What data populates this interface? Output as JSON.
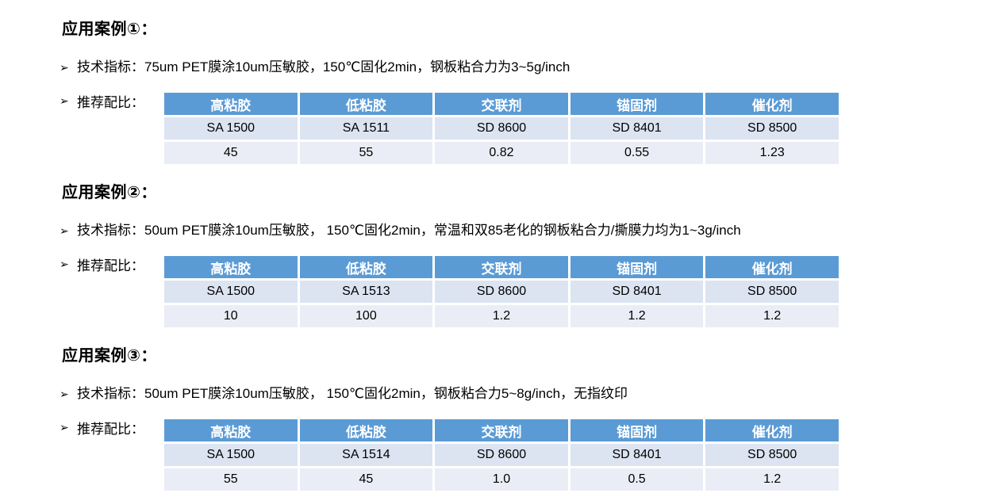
{
  "colors": {
    "table_header_bg": "#5B9BD5",
    "table_header_text": "#FFFFFF",
    "table_row1_bg": "#DCE3F1",
    "table_row2_bg": "#EAEDF5",
    "body_text": "#000000"
  },
  "bullet_glyph": "➢",
  "sections": [
    {
      "title": "应用案例①：",
      "tech_label": "技术指标：75um PET膜涂10um压敏胶，150℃固化2min，钢板粘合力为3~5g/inch",
      "ratio_label": "推荐配比：",
      "table": {
        "headers": [
          "高粘胶",
          "低粘胶",
          "交联剂",
          "锚固剂",
          "催化剂"
        ],
        "rows": [
          [
            "SA 1500",
            "SA 1511",
            "SD 8600",
            "SD 8401",
            "SD 8500"
          ],
          [
            "45",
            "55",
            "0.82",
            "0.55",
            "1.23"
          ]
        ]
      }
    },
    {
      "title": "应用案例②：",
      "tech_label": "技术指标：50um PET膜涂10um压敏胶， 150℃固化2min，常温和双85老化的钢板粘合力/撕膜力均为1~3g/inch",
      "ratio_label": "推荐配比：",
      "table": {
        "headers": [
          "高粘胶",
          "低粘胶",
          "交联剂",
          "锚固剂",
          "催化剂"
        ],
        "rows": [
          [
            "SA 1500",
            "SA 1513",
            "SD 8600",
            "SD 8401",
            "SD 8500"
          ],
          [
            "10",
            "100",
            "1.2",
            "1.2",
            "1.2"
          ]
        ]
      }
    },
    {
      "title": "应用案例③：",
      "tech_label": "技术指标：50um PET膜涂10um压敏胶， 150℃固化2min，钢板粘合力5~8g/inch，无指纹印",
      "ratio_label": "推荐配比：",
      "table": {
        "headers": [
          "高粘胶",
          "低粘胶",
          "交联剂",
          "锚固剂",
          "催化剂"
        ],
        "rows": [
          [
            "SA 1500",
            "SA 1514",
            "SD 8600",
            "SD 8401",
            "SD 8500"
          ],
          [
            "55",
            "45",
            "1.0",
            "0.5",
            "1.2"
          ]
        ]
      }
    }
  ]
}
